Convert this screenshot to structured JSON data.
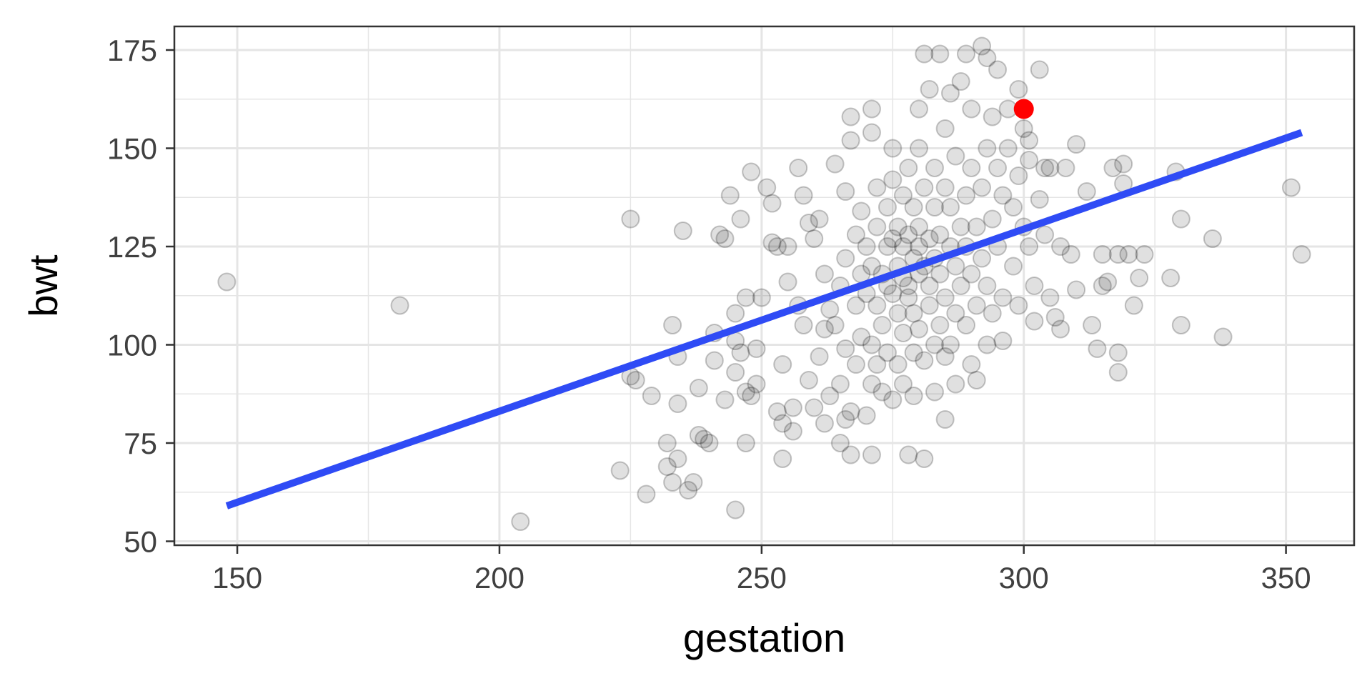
{
  "chart_data": {
    "type": "scatter",
    "title": "",
    "xlabel": "gestation",
    "ylabel": "bwt",
    "xlim": [
      138,
      363
    ],
    "ylim": [
      49,
      181
    ],
    "x_ticks": [
      150,
      200,
      250,
      300,
      350
    ],
    "y_ticks": [
      50,
      75,
      100,
      125,
      150,
      175
    ],
    "x_tick_labels": [
      "150",
      "200",
      "250",
      "300",
      "350"
    ],
    "y_tick_labels": [
      "50",
      "75",
      "100",
      "125",
      "150",
      "175"
    ],
    "grid": true,
    "colors": {
      "points": "#000000",
      "fit": "#2f4bf5",
      "highlight": "#ff0000",
      "panel_border": "#333333",
      "grid": "#e5e5e5"
    },
    "series": [
      {
        "values": [
          [
            148,
            116
          ],
          [
            181,
            110
          ],
          [
            204,
            55
          ],
          [
            223,
            68
          ],
          [
            225,
            92
          ],
          [
            225,
            132
          ],
          [
            226,
            91
          ],
          [
            228,
            62
          ],
          [
            229,
            87
          ],
          [
            232,
            75
          ],
          [
            232,
            69
          ],
          [
            233,
            65
          ],
          [
            233,
            105
          ],
          [
            234,
            71
          ],
          [
            234,
            97
          ],
          [
            234,
            85
          ],
          [
            235,
            129
          ],
          [
            236,
            63
          ],
          [
            237,
            65
          ],
          [
            238,
            77
          ],
          [
            238,
            89
          ],
          [
            239,
            76
          ],
          [
            240,
            75
          ],
          [
            241,
            103
          ],
          [
            241,
            96
          ],
          [
            242,
            128
          ],
          [
            243,
            86
          ],
          [
            243,
            127
          ],
          [
            244,
            138
          ],
          [
            245,
            101
          ],
          [
            245,
            108
          ],
          [
            245,
            58
          ],
          [
            245,
            93
          ],
          [
            246,
            132
          ],
          [
            246,
            98
          ],
          [
            247,
            75
          ],
          [
            247,
            88
          ],
          [
            247,
            112
          ],
          [
            248,
            144
          ],
          [
            248,
            87
          ],
          [
            249,
            99
          ],
          [
            249,
            90
          ],
          [
            250,
            112
          ],
          [
            251,
            140
          ],
          [
            252,
            126
          ],
          [
            252,
            136
          ],
          [
            253,
            83
          ],
          [
            253,
            125
          ],
          [
            254,
            80
          ],
          [
            254,
            71
          ],
          [
            254,
            95
          ],
          [
            255,
            116
          ],
          [
            255,
            125
          ],
          [
            256,
            84
          ],
          [
            256,
            78
          ],
          [
            257,
            145
          ],
          [
            257,
            110
          ],
          [
            258,
            105
          ],
          [
            258,
            138
          ],
          [
            259,
            131
          ],
          [
            259,
            91
          ],
          [
            260,
            84
          ],
          [
            260,
            127
          ],
          [
            261,
            97
          ],
          [
            261,
            132
          ],
          [
            262,
            80
          ],
          [
            262,
            104
          ],
          [
            262,
            118
          ],
          [
            263,
            109
          ],
          [
            263,
            87
          ],
          [
            264,
            146
          ],
          [
            264,
            105
          ],
          [
            265,
            115
          ],
          [
            265,
            75
          ],
          [
            265,
            90
          ],
          [
            266,
            99
          ],
          [
            266,
            81
          ],
          [
            266,
            122
          ],
          [
            266,
            139
          ],
          [
            267,
            152
          ],
          [
            267,
            158
          ],
          [
            267,
            72
          ],
          [
            267,
            83
          ],
          [
            268,
            128
          ],
          [
            268,
            110
          ],
          [
            268,
            95
          ],
          [
            269,
            134
          ],
          [
            269,
            102
          ],
          [
            269,
            118
          ],
          [
            270,
            82
          ],
          [
            270,
            113
          ],
          [
            270,
            125
          ],
          [
            271,
            90
          ],
          [
            271,
            100
          ],
          [
            271,
            120
          ],
          [
            271,
            160
          ],
          [
            271,
            154
          ],
          [
            271,
            72
          ],
          [
            272,
            140
          ],
          [
            272,
            130
          ],
          [
            272,
            110
          ],
          [
            272,
            95
          ],
          [
            273,
            105
          ],
          [
            273,
            118
          ],
          [
            273,
            88
          ],
          [
            274,
            125
          ],
          [
            274,
            135
          ],
          [
            274,
            115
          ],
          [
            274,
            98
          ],
          [
            275,
            127
          ],
          [
            275,
            113
          ],
          [
            275,
            142
          ],
          [
            275,
            86
          ],
          [
            275,
            150
          ],
          [
            276,
            120
          ],
          [
            276,
            108
          ],
          [
            276,
            130
          ],
          [
            276,
            95
          ],
          [
            277,
            117
          ],
          [
            277,
            138
          ],
          [
            277,
            125
          ],
          [
            277,
            103
          ],
          [
            277,
            90
          ],
          [
            278,
            72
          ],
          [
            278,
            128
          ],
          [
            278,
            115
          ],
          [
            278,
            145
          ],
          [
            278,
            112
          ],
          [
            279,
            122
          ],
          [
            279,
            98
          ],
          [
            279,
            135
          ],
          [
            279,
            108
          ],
          [
            279,
            87
          ],
          [
            280,
            125
          ],
          [
            280,
            118
          ],
          [
            280,
            150
          ],
          [
            280,
            130
          ],
          [
            280,
            104
          ],
          [
            280,
            160
          ],
          [
            281,
            174
          ],
          [
            281,
            120
          ],
          [
            281,
            96
          ],
          [
            281,
            140
          ],
          [
            281,
            71
          ],
          [
            282,
            127
          ],
          [
            282,
            115
          ],
          [
            282,
            165
          ],
          [
            282,
            110
          ],
          [
            283,
            135
          ],
          [
            283,
            100
          ],
          [
            283,
            122
          ],
          [
            283,
            145
          ],
          [
            283,
            88
          ],
          [
            284,
            174
          ],
          [
            284,
            118
          ],
          [
            284,
            128
          ],
          [
            284,
            105
          ],
          [
            285,
            140
          ],
          [
            285,
            155
          ],
          [
            285,
            112
          ],
          [
            285,
            81
          ],
          [
            285,
            97
          ],
          [
            286,
            164
          ],
          [
            286,
            125
          ],
          [
            286,
            135
          ],
          [
            286,
            100
          ],
          [
            287,
            120
          ],
          [
            287,
            148
          ],
          [
            287,
            108
          ],
          [
            287,
            90
          ],
          [
            288,
            167
          ],
          [
            288,
            130
          ],
          [
            288,
            115
          ],
          [
            289,
            174
          ],
          [
            289,
            138
          ],
          [
            289,
            125
          ],
          [
            289,
            105
          ],
          [
            290,
            160
          ],
          [
            290,
            118
          ],
          [
            290,
            95
          ],
          [
            290,
            145
          ],
          [
            291,
            110
          ],
          [
            291,
            130
          ],
          [
            291,
            91
          ],
          [
            292,
            176
          ],
          [
            292,
            140
          ],
          [
            292,
            122
          ],
          [
            293,
            173
          ],
          [
            293,
            150
          ],
          [
            293,
            115
          ],
          [
            293,
            100
          ],
          [
            294,
            158
          ],
          [
            294,
            132
          ],
          [
            294,
            108
          ],
          [
            295,
            170
          ],
          [
            295,
            125
          ],
          [
            295,
            145
          ],
          [
            296,
            138
          ],
          [
            296,
            112
          ],
          [
            296,
            101
          ],
          [
            297,
            160
          ],
          [
            297,
            150
          ],
          [
            298,
            135
          ],
          [
            298,
            120
          ],
          [
            299,
            165
          ],
          [
            299,
            143
          ],
          [
            299,
            110
          ],
          [
            300,
            155
          ],
          [
            300,
            130
          ],
          [
            301,
            152
          ],
          [
            301,
            125
          ],
          [
            301,
            147
          ],
          [
            302,
            115
          ],
          [
            302,
            106
          ],
          [
            303,
            170
          ],
          [
            303,
            137
          ],
          [
            304,
            145
          ],
          [
            304,
            128
          ],
          [
            305,
            112
          ],
          [
            305,
            145
          ],
          [
            306,
            107
          ],
          [
            307,
            125
          ],
          [
            307,
            104
          ],
          [
            308,
            145
          ],
          [
            309,
            123
          ],
          [
            310,
            114
          ],
          [
            310,
            151
          ],
          [
            312,
            139
          ],
          [
            313,
            105
          ],
          [
            314,
            99
          ],
          [
            315,
            115
          ],
          [
            315,
            123
          ],
          [
            316,
            116
          ],
          [
            317,
            145
          ],
          [
            318,
            93
          ],
          [
            318,
            98
          ],
          [
            318,
            123
          ],
          [
            319,
            141
          ],
          [
            319,
            146
          ],
          [
            320,
            123
          ],
          [
            321,
            110
          ],
          [
            322,
            117
          ],
          [
            323,
            123
          ],
          [
            328,
            117
          ],
          [
            329,
            144
          ],
          [
            330,
            105
          ],
          [
            330,
            132
          ],
          [
            336,
            127
          ],
          [
            338,
            102
          ],
          [
            351,
            140
          ],
          [
            353,
            123
          ]
        ]
      }
    ],
    "fit_line": {
      "x": [
        148,
        353
      ],
      "y": [
        59,
        154
      ]
    },
    "highlight_point": {
      "x": 300,
      "y": 160
    }
  }
}
